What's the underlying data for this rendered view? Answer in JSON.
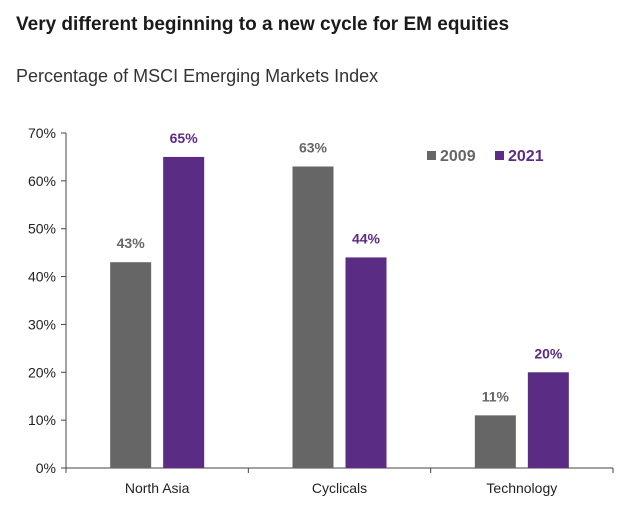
{
  "title": "Very different beginning to a new cycle for EM equities",
  "subtitle": "Percentage of MSCI Emerging Markets Index",
  "chart_data": {
    "type": "bar",
    "categories": [
      "North Asia",
      "Cyclicals",
      "Technology"
    ],
    "series": [
      {
        "name": "2009",
        "values": [
          43,
          63,
          11
        ],
        "labels": [
          "43%",
          "63%",
          "11%"
        ],
        "color": "#666666"
      },
      {
        "name": "2021",
        "values": [
          65,
          44,
          20
        ],
        "labels": [
          "65%",
          "44%",
          "20%"
        ],
        "color": "#5b2c83"
      }
    ],
    "yticks": [
      "0%",
      "10%",
      "20%",
      "30%",
      "40%",
      "50%",
      "60%",
      "70%"
    ],
    "ylim": [
      0,
      70
    ],
    "grid": false,
    "legend_position": "top-right"
  }
}
